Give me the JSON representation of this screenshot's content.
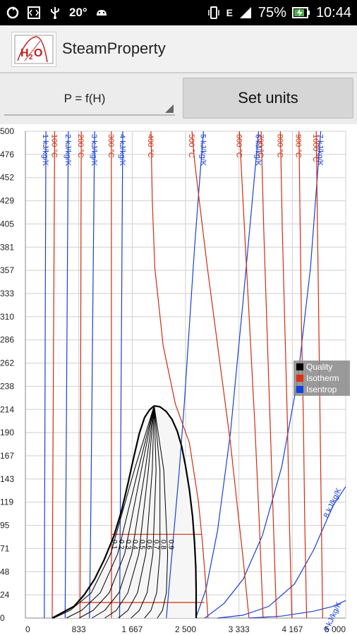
{
  "status_bar": {
    "temperature": "20°",
    "network_letter": "E",
    "battery": "75%",
    "time": "10:44",
    "icons": [
      "sync-icon",
      "code-icon",
      "usb-icon",
      "android-icon",
      "vibrate-icon",
      "signal-icon",
      "battery-charging-icon"
    ]
  },
  "app": {
    "title": "SteamProperty",
    "icon": "h2o-logo"
  },
  "controls": {
    "spinner_value": "P = f(H)",
    "set_units_label": "Set units"
  },
  "legend": {
    "items": [
      "Quality",
      "Isotherm",
      "Isentrop"
    ],
    "colors": [
      "#000000",
      "#e03010",
      "#1040e0"
    ]
  },
  "chart_data": {
    "type": "line",
    "xlim": [
      0,
      5000
    ],
    "ylim": [
      0,
      500
    ],
    "x_ticks": [
      "0",
      "833",
      "1 667",
      "2 500",
      "3 333",
      "4 167",
      "5 000"
    ],
    "y_ticks": [
      "0",
      "24",
      "48",
      "71",
      "95",
      "119",
      "143",
      "167",
      "190",
      "214",
      "238",
      "262",
      "286",
      "310",
      "333",
      "357",
      "381",
      "405",
      "429",
      "452",
      "476",
      "500"
    ],
    "grid": true,
    "legend_position": "center-right",
    "series_colors": {
      "quality": "#000000",
      "isotherm": "#d02c10",
      "isentrop": "#1840d8"
    },
    "saturation_dome": {
      "liquid": [
        [
          420,
          0
        ],
        [
          560,
          5
        ],
        [
          760,
          12
        ],
        [
          920,
          24
        ],
        [
          1080,
          40
        ],
        [
          1230,
          60
        ],
        [
          1380,
          84
        ],
        [
          1500,
          110
        ],
        [
          1600,
          138
        ],
        [
          1690,
          165
        ],
        [
          1780,
          190
        ],
        [
          1860,
          206
        ],
        [
          1940,
          214
        ],
        [
          2010,
          218
        ]
      ],
      "vapor": [
        [
          2010,
          218
        ],
        [
          2100,
          217
        ],
        [
          2200,
          212
        ],
        [
          2290,
          204
        ],
        [
          2370,
          192
        ],
        [
          2440,
          176
        ],
        [
          2500,
          156
        ],
        [
          2560,
          132
        ],
        [
          2610,
          104
        ],
        [
          2640,
          78
        ],
        [
          2660,
          52
        ],
        [
          2665,
          28
        ],
        [
          2665,
          0
        ]
      ]
    },
    "quality_lines": [
      {
        "label": "0.1",
        "points": [
          [
            440,
            0
          ],
          [
            700,
            8
          ],
          [
            1030,
            26
          ],
          [
            1330,
            66
          ],
          [
            1700,
            152
          ],
          [
            2010,
            218
          ]
        ]
      },
      {
        "label": "0.2",
        "points": [
          [
            640,
            0
          ],
          [
            880,
            8
          ],
          [
            1170,
            26
          ],
          [
            1440,
            66
          ],
          [
            1760,
            152
          ],
          [
            2010,
            218
          ]
        ]
      },
      {
        "label": "0.3",
        "points": [
          [
            840,
            0
          ],
          [
            1060,
            8
          ],
          [
            1310,
            26
          ],
          [
            1550,
            66
          ],
          [
            1810,
            152
          ],
          [
            2010,
            218
          ]
        ]
      },
      {
        "label": "0.4",
        "points": [
          [
            1040,
            0
          ],
          [
            1240,
            8
          ],
          [
            1460,
            26
          ],
          [
            1660,
            66
          ],
          [
            1870,
            152
          ],
          [
            2010,
            218
          ]
        ]
      },
      {
        "label": "0.5",
        "points": [
          [
            1240,
            0
          ],
          [
            1420,
            8
          ],
          [
            1600,
            26
          ],
          [
            1770,
            66
          ],
          [
            1920,
            152
          ],
          [
            2010,
            218
          ]
        ]
      },
      {
        "label": "0.6",
        "points": [
          [
            1450,
            0
          ],
          [
            1600,
            8
          ],
          [
            1750,
            26
          ],
          [
            1880,
            66
          ],
          [
            1980,
            152
          ],
          [
            2010,
            218
          ]
        ]
      },
      {
        "label": "0.7",
        "points": [
          [
            1650,
            0
          ],
          [
            1780,
            8
          ],
          [
            1900,
            26
          ],
          [
            1990,
            66
          ],
          [
            2040,
            152
          ],
          [
            2010,
            218
          ]
        ]
      },
      {
        "label": "0.8",
        "points": [
          [
            1860,
            0
          ],
          [
            1960,
            8
          ],
          [
            2050,
            26
          ],
          [
            2100,
            66
          ],
          [
            2100,
            152
          ],
          [
            2010,
            218
          ]
        ]
      },
      {
        "label": "0.9",
        "points": [
          [
            2060,
            0
          ],
          [
            2140,
            8
          ],
          [
            2200,
            26
          ],
          [
            2220,
            66
          ],
          [
            2160,
            152
          ],
          [
            2010,
            218
          ]
        ]
      }
    ],
    "isotherms": [
      {
        "label": "100 °C",
        "points": [
          [
            419,
            0
          ],
          [
            425,
            100
          ],
          [
            433,
            200
          ],
          [
            441,
            300
          ],
          [
            449,
            400
          ],
          [
            457,
            500
          ]
        ]
      },
      {
        "label": "200 °C",
        "points": [
          [
            852,
            0
          ],
          [
            856,
            100
          ],
          [
            860,
            200
          ],
          [
            864,
            300
          ],
          [
            868,
            400
          ],
          [
            872,
            500
          ]
        ],
        "plateau": [
          [
            852,
            16
          ],
          [
            2793,
            16
          ]
        ]
      },
      {
        "label": "300 °C",
        "points": [
          [
            1344,
            0
          ],
          [
            1344,
            100
          ],
          [
            1344,
            200
          ],
          [
            1343,
            300
          ],
          [
            1342,
            400
          ],
          [
            1341,
            500
          ]
        ],
        "plateau": [
          [
            1344,
            86
          ],
          [
            2749,
            86
          ]
        ]
      },
      {
        "label": "400 °C",
        "points": [
          [
            2850,
            0
          ],
          [
            2810,
            40
          ],
          [
            2760,
            80
          ],
          [
            2700,
            120
          ],
          [
            2560,
            180
          ],
          [
            2340,
            220
          ],
          [
            2150,
            280
          ],
          [
            2020,
            360
          ],
          [
            1980,
            430
          ],
          [
            1960,
            500
          ]
        ]
      },
      {
        "label": "500 °C",
        "points": [
          [
            3490,
            0
          ],
          [
            3400,
            60
          ],
          [
            3300,
            120
          ],
          [
            3200,
            180
          ],
          [
            3080,
            240
          ],
          [
            2960,
            300
          ],
          [
            2840,
            360
          ],
          [
            2730,
            420
          ],
          [
            2640,
            470
          ],
          [
            2600,
            500
          ]
        ]
      },
      {
        "label": "600 °C",
        "points": [
          [
            3710,
            0
          ],
          [
            3650,
            100
          ],
          [
            3580,
            200
          ],
          [
            3500,
            300
          ],
          [
            3420,
            400
          ],
          [
            3340,
            500
          ]
        ]
      },
      {
        "label": "700 °C",
        "points": [
          [
            3920,
            0
          ],
          [
            3870,
            100
          ],
          [
            3820,
            200
          ],
          [
            3770,
            300
          ],
          [
            3720,
            400
          ],
          [
            3680,
            500
          ]
        ]
      },
      {
        "label": "800 °C",
        "points": [
          [
            4160,
            0
          ],
          [
            4120,
            100
          ],
          [
            4090,
            200
          ],
          [
            4050,
            300
          ],
          [
            4010,
            400
          ],
          [
            3980,
            500
          ]
        ]
      },
      {
        "label": "900 °C",
        "points": [
          [
            4390,
            0
          ],
          [
            4360,
            100
          ],
          [
            4340,
            200
          ],
          [
            4310,
            300
          ],
          [
            4290,
            400
          ],
          [
            4270,
            500
          ]
        ]
      },
      {
        "label": "1000 °C",
        "points": [
          [
            4640,
            0
          ],
          [
            4620,
            100
          ],
          [
            4600,
            200
          ],
          [
            4580,
            300
          ],
          [
            4560,
            400
          ],
          [
            4540,
            500
          ]
        ]
      }
    ],
    "isentropes": [
      {
        "label": "1 kJ/kg/K",
        "points": [
          [
            295,
            0
          ],
          [
            300,
            100
          ],
          [
            305,
            200
          ],
          [
            310,
            300
          ],
          [
            315,
            400
          ],
          [
            320,
            500
          ]
        ]
      },
      {
        "label": "2 kJ/kg/K",
        "points": [
          [
            620,
            0
          ],
          [
            630,
            100
          ],
          [
            640,
            200
          ],
          [
            650,
            300
          ],
          [
            660,
            400
          ],
          [
            670,
            500
          ]
        ]
      },
      {
        "label": "3 kJ/kg/K",
        "points": [
          [
            1000,
            0
          ],
          [
            1020,
            100
          ],
          [
            1035,
            200
          ],
          [
            1050,
            300
          ],
          [
            1065,
            400
          ],
          [
            1080,
            500
          ]
        ]
      },
      {
        "label": "4 kJ/kg/K",
        "points": [
          [
            1470,
            0
          ],
          [
            1480,
            100
          ],
          [
            1490,
            200
          ],
          [
            1500,
            300
          ],
          [
            1510,
            400
          ],
          [
            1520,
            500
          ]
        ]
      },
      {
        "label": "5 kJ/kg/K",
        "points": [
          [
            2200,
            0
          ],
          [
            2280,
            60
          ],
          [
            2400,
            150
          ],
          [
            2480,
            220
          ],
          [
            2560,
            300
          ],
          [
            2640,
            380
          ],
          [
            2720,
            450
          ],
          [
            2780,
            500
          ]
        ]
      },
      {
        "label": "6 kJ/kg/K",
        "points": [
          [
            2660,
            0
          ],
          [
            2820,
            30
          ],
          [
            3000,
            90
          ],
          [
            3200,
            190
          ],
          [
            3390,
            320
          ],
          [
            3530,
            420
          ],
          [
            3640,
            500
          ]
        ]
      },
      {
        "label": "7 kJ/kg/K",
        "points": [
          [
            2800,
            0
          ],
          [
            3100,
            15
          ],
          [
            3400,
            40
          ],
          [
            3700,
            85
          ],
          [
            4000,
            155
          ],
          [
            4250,
            245
          ],
          [
            4450,
            360
          ],
          [
            4610,
            500
          ]
        ]
      },
      {
        "label": "8 kJ/kg/K",
        "points": [
          [
            3000,
            0
          ],
          [
            3400,
            3
          ],
          [
            3800,
            12
          ],
          [
            4200,
            35
          ],
          [
            4500,
            70
          ],
          [
            4800,
            115
          ],
          [
            5000,
            135
          ]
        ]
      },
      {
        "label": "9 kJ/kg/K",
        "points": [
          [
            3500,
            0
          ],
          [
            4000,
            2
          ],
          [
            4500,
            7
          ],
          [
            4800,
            12
          ],
          [
            5000,
            18
          ]
        ]
      }
    ]
  }
}
